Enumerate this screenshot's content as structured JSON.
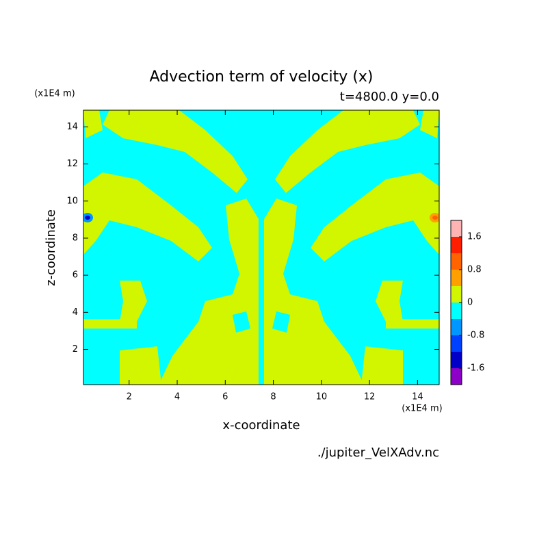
{
  "chart_data": {
    "type": "contour",
    "title": "Advection term of velocity (x)",
    "subtitle": "t=4800.0 y=0.0",
    "x_label": "x-coordinate",
    "y_label": "z-coordinate",
    "x_unit": "(x1E4 m)",
    "y_unit": "(x1E4 m)",
    "source": "./jupiter_VelXAdv.nc",
    "xlim": [
      0.1,
      14.9
    ],
    "xticks": [
      2,
      4,
      6,
      8,
      10,
      12,
      14
    ],
    "ylim": [
      0.1,
      14.9
    ],
    "yticks": [
      2,
      4,
      6,
      8,
      10,
      12,
      14
    ],
    "colorbar": {
      "levels": [
        -2,
        -1.6,
        -1.2,
        -0.8,
        -0.4,
        0,
        0.4,
        0.8,
        1.2,
        1.6,
        2
      ],
      "colors": [
        "#8c00c8",
        "#0000c8",
        "#0040ff",
        "#0096ff",
        "#00ffff",
        "#d2f500",
        "#ffa000",
        "#ff6400",
        "#ff1e00",
        "#ffb4b4"
      ],
      "ticks": [
        -1.6,
        -0.8,
        0,
        0.8,
        1.6
      ]
    }
  }
}
